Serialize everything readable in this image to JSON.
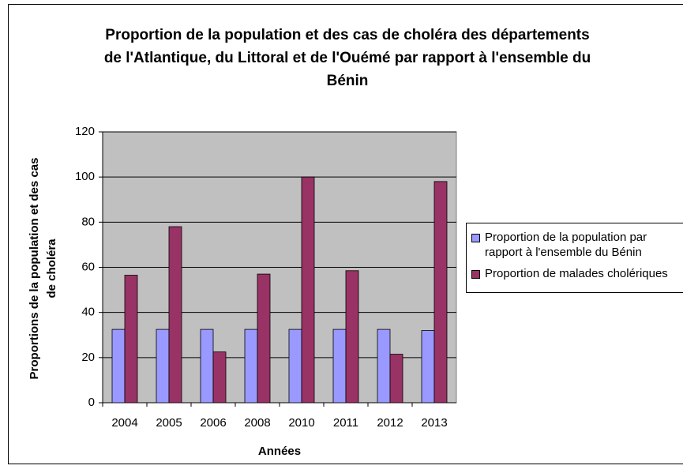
{
  "chart_data": {
    "type": "bar",
    "title": "Proportion de la population et des cas de choléra des départements de l'Atlantique, du Littoral et de l'Ouémé par rapport à l'ensemble du Bénin",
    "xlabel": "Années",
    "ylabel": "Proportions de la population et des cas de choléra",
    "categories": [
      "2004",
      "2005",
      "2006",
      "2008",
      "2010",
      "2011",
      "2012",
      "2013"
    ],
    "series": [
      {
        "name": "Proportion de la population par rapport à l'ensemble du Bénin",
        "color": "#9999ff",
        "values": [
          32.5,
          32.5,
          32.5,
          32.5,
          32.5,
          32.5,
          32.5,
          32
        ]
      },
      {
        "name": "Proportion de malades cholériques",
        "color": "#993366",
        "values": [
          56.5,
          78,
          22.5,
          57,
          100,
          58.5,
          21.5,
          98
        ]
      }
    ],
    "ylim": [
      0,
      120
    ],
    "yticks": [
      0,
      20,
      40,
      60,
      80,
      100,
      120
    ],
    "grid": true,
    "legend": "right"
  }
}
